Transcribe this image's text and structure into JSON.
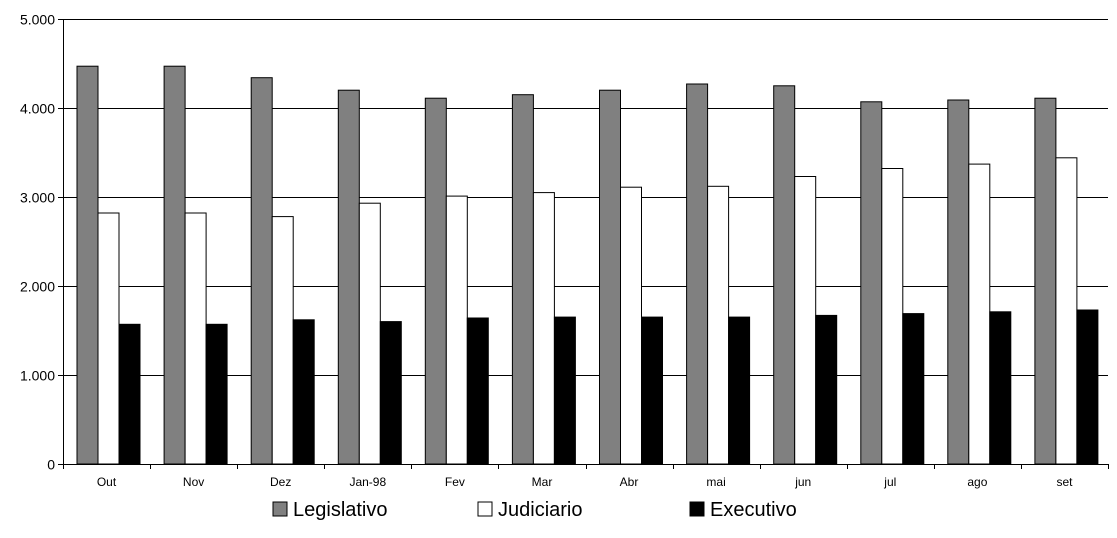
{
  "chart_data": {
    "type": "bar",
    "categories": [
      "Out",
      "Nov",
      "Dez",
      "Jan-98",
      "Fev",
      "Mar",
      "Abr",
      "mai",
      "jun",
      "jul",
      "ago",
      "set"
    ],
    "series": [
      {
        "name": "Legislativo",
        "color": "#808080",
        "values": [
          4470,
          4470,
          4340,
          4200,
          4110,
          4150,
          4200,
          4270,
          4250,
          4070,
          4090,
          4110
        ]
      },
      {
        "name": "Judiciario",
        "color": "#ffffff",
        "values": [
          2820,
          2820,
          2780,
          2930,
          3010,
          3050,
          3110,
          3120,
          3230,
          3320,
          3370,
          3440
        ]
      },
      {
        "name": "Executivo",
        "color": "#000000",
        "values": [
          1570,
          1570,
          1620,
          1600,
          1640,
          1650,
          1650,
          1650,
          1670,
          1690,
          1710,
          1730
        ]
      }
    ],
    "ylim": [
      0,
      5000
    ],
    "yticks": [
      0,
      1000,
      2000,
      3000,
      4000,
      5000
    ],
    "ytick_labels": [
      "0",
      "1.000",
      "2.000",
      "3.000",
      "4.000",
      "5.000"
    ],
    "grid": true,
    "legend_position": "bottom",
    "title": "",
    "xlabel": "",
    "ylabel": ""
  }
}
